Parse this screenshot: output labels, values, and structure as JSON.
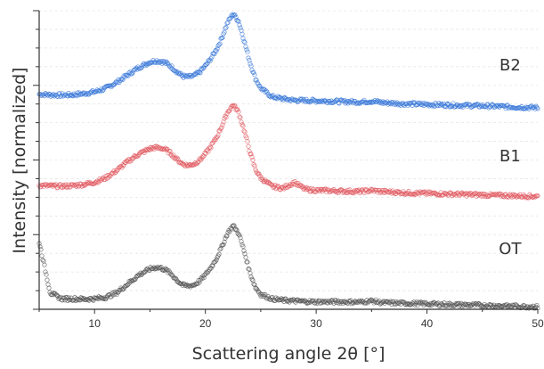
{
  "chart_data": {
    "type": "scatter",
    "title": "",
    "xlabel": "Scattering angle 2θ [°]",
    "ylabel": "Intensity [normalized]",
    "xlim": [
      5,
      50
    ],
    "ylim": [
      0,
      1
    ],
    "x_ticks": [
      "10",
      "20",
      "30",
      "40",
      "50"
    ],
    "y_tick_labels_shown": false,
    "grid": "horizontal dashed",
    "legend": "none (series labeled inline at right)",
    "x": [
      5,
      6,
      7,
      8,
      9,
      10,
      11,
      12,
      13,
      14,
      15,
      15.5,
      16,
      16.5,
      17,
      17.5,
      18,
      18.5,
      19,
      19.5,
      20,
      20.5,
      21,
      21.5,
      22,
      22.5,
      23,
      23.5,
      24,
      24.5,
      25,
      26,
      27,
      28,
      29,
      30,
      32,
      34,
      35,
      36,
      38,
      40,
      42,
      44,
      46,
      48,
      50
    ],
    "series": [
      {
        "name": "B2",
        "color": "#3a78d8",
        "values": [
          0.72,
          0.718,
          0.717,
          0.718,
          0.722,
          0.728,
          0.74,
          0.76,
          0.785,
          0.81,
          0.828,
          0.832,
          0.83,
          0.824,
          0.81,
          0.793,
          0.78,
          0.778,
          0.782,
          0.795,
          0.815,
          0.84,
          0.87,
          0.91,
          0.96,
          0.99,
          0.965,
          0.9,
          0.83,
          0.775,
          0.74,
          0.712,
          0.705,
          0.7,
          0.699,
          0.698,
          0.696,
          0.694,
          0.697,
          0.692,
          0.688,
          0.686,
          0.684,
          0.682,
          0.68,
          0.677,
          0.675
        ]
      },
      {
        "name": "B1",
        "color": "#e05a62",
        "values": [
          0.415,
          0.413,
          0.412,
          0.414,
          0.418,
          0.425,
          0.44,
          0.465,
          0.495,
          0.52,
          0.538,
          0.541,
          0.54,
          0.533,
          0.518,
          0.5,
          0.485,
          0.482,
          0.487,
          0.5,
          0.52,
          0.545,
          0.575,
          0.615,
          0.66,
          0.685,
          0.66,
          0.6,
          0.53,
          0.47,
          0.44,
          0.412,
          0.405,
          0.425,
          0.402,
          0.398,
          0.396,
          0.394,
          0.398,
          0.394,
          0.39,
          0.388,
          0.386,
          0.384,
          0.382,
          0.38,
          0.378
        ]
      },
      {
        "name": "OT",
        "color": "#555555",
        "values": [
          0.225,
          0.055,
          0.035,
          0.035,
          0.034,
          0.035,
          0.04,
          0.055,
          0.085,
          0.115,
          0.135,
          0.14,
          0.138,
          0.13,
          0.115,
          0.095,
          0.08,
          0.078,
          0.082,
          0.095,
          0.115,
          0.14,
          0.17,
          0.21,
          0.255,
          0.28,
          0.255,
          0.195,
          0.125,
          0.075,
          0.05,
          0.035,
          0.03,
          0.028,
          0.026,
          0.025,
          0.025,
          0.024,
          0.028,
          0.022,
          0.02,
          0.018,
          0.016,
          0.014,
          0.012,
          0.01,
          0.008
        ]
      }
    ],
    "series_labels": [
      {
        "text": "B2",
        "x": 47.5,
        "y": 0.8
      },
      {
        "text": "B1",
        "x": 47.5,
        "y": 0.495
      },
      {
        "text": "OT",
        "x": 47.5,
        "y": 0.185
      }
    ]
  }
}
